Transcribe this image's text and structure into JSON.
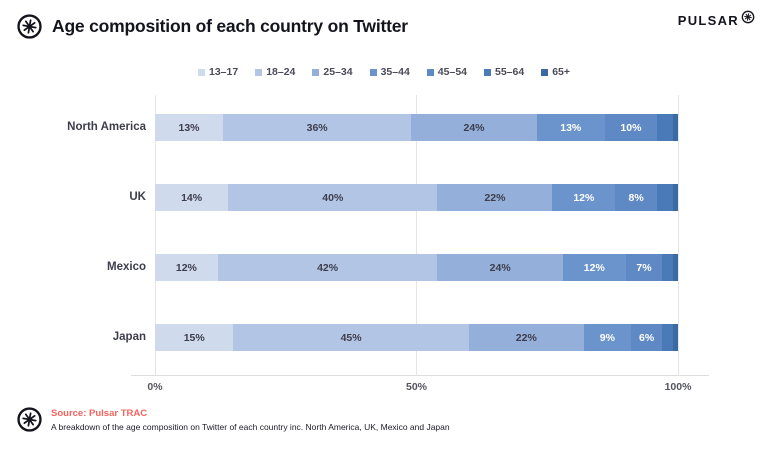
{
  "header": {
    "title": "Age composition of each country on Twitter",
    "brand": "PULSAR"
  },
  "chart_data": {
    "type": "bar",
    "orientation": "horizontal",
    "stacked": true,
    "title": "Age composition of each country on Twitter",
    "categories": [
      "North America",
      "UK",
      "Mexico",
      "Japan"
    ],
    "series": [
      {
        "name": "13–17",
        "color": "#cfdaec",
        "values": [
          13,
          14,
          12,
          15
        ]
      },
      {
        "name": "18–24",
        "color": "#b2c5e4",
        "values": [
          36,
          40,
          42,
          45
        ]
      },
      {
        "name": "25–34",
        "color": "#93afda",
        "values": [
          24,
          22,
          24,
          22
        ]
      },
      {
        "name": "35–44",
        "color": "#6b94cc",
        "values": [
          13,
          12,
          12,
          9
        ]
      },
      {
        "name": "45–54",
        "color": "#5e89c5",
        "values": [
          10,
          8,
          7,
          6
        ]
      },
      {
        "name": "55–64",
        "color": "#4b7ab8",
        "values": [
          3,
          3,
          2,
          2
        ]
      },
      {
        "name": "65+",
        "color": "#3a69a4",
        "values": [
          1,
          1,
          1,
          1
        ]
      }
    ],
    "value_suffix": "%",
    "xticks": [
      "0%",
      "50%",
      "100%"
    ],
    "xlim": [
      0,
      100
    ],
    "grid": "vertical-only",
    "legend_position": "top-center",
    "label_min_value": 6,
    "colors": {
      "label_dark": "#3d3d4c",
      "label_light": "#ffffff",
      "gridline": "#e4e4e9"
    }
  },
  "footer": {
    "source_label": "Source: Pulsar TRAC",
    "source_color": "#f4635e",
    "description": "A breakdown of the age composition on Twitter of each country inc. North America, UK, Mexico and Japan"
  }
}
